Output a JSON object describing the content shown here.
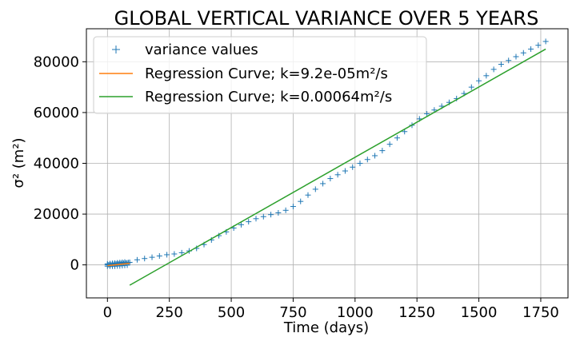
{
  "chart_data": {
    "type": "scatter",
    "title": "GLOBAL VERTICAL VARIANCE OVER 5 YEARS",
    "xlabel": "Time (days)",
    "ylabel": "σ² (m²)",
    "xlim": [
      -85,
      1860
    ],
    "ylim": [
      -13000,
      93000
    ],
    "xticks": [
      0,
      250,
      500,
      750,
      1000,
      1250,
      1500,
      1750
    ],
    "yticks": [
      0,
      20000,
      40000,
      60000,
      80000
    ],
    "grid": true,
    "legend_position": "top-left",
    "series": [
      {
        "name": "variance values",
        "kind": "scatter",
        "marker": "+",
        "color": "#1f77b4",
        "x": [
          0,
          5,
          10,
          15,
          20,
          25,
          30,
          35,
          40,
          45,
          50,
          55,
          60,
          65,
          70,
          75,
          80,
          85,
          90,
          120,
          150,
          180,
          210,
          240,
          270,
          300,
          330,
          360,
          390,
          420,
          450,
          480,
          510,
          540,
          570,
          600,
          630,
          660,
          690,
          720,
          750,
          780,
          810,
          840,
          870,
          900,
          930,
          960,
          990,
          1020,
          1050,
          1080,
          1110,
          1140,
          1170,
          1200,
          1230,
          1260,
          1290,
          1320,
          1350,
          1380,
          1410,
          1440,
          1470,
          1500,
          1530,
          1560,
          1590,
          1620,
          1650,
          1680,
          1710,
          1740,
          1770
        ],
        "y": [
          0,
          50,
          100,
          150,
          200,
          250,
          300,
          350,
          400,
          450,
          500,
          550,
          600,
          650,
          700,
          750,
          800,
          900,
          1000,
          2000,
          2500,
          3000,
          3500,
          4000,
          4300,
          4800,
          5500,
          6500,
          8000,
          9800,
          11500,
          13000,
          14500,
          15800,
          17000,
          18200,
          19000,
          19800,
          20500,
          21500,
          23000,
          25000,
          27500,
          29800,
          32000,
          34000,
          35500,
          37000,
          38500,
          40000,
          41500,
          43000,
          45000,
          47500,
          50000,
          52500,
          55000,
          57500,
          59500,
          61000,
          62500,
          64000,
          65500,
          67500,
          70000,
          72500,
          74500,
          77000,
          79000,
          80500,
          82000,
          83500,
          85000,
          86500,
          88000
        ]
      },
      {
        "name": "Regression Curve; k=9.2e-05m²/s",
        "kind": "line",
        "color": "#ff7f0e",
        "x": [
          0,
          90
        ],
        "y": [
          -300,
          600
        ]
      },
      {
        "name": "Regression Curve; k=0.00064m²/s",
        "kind": "line",
        "color": "#2ca02c",
        "x": [
          90,
          1770
        ],
        "y": [
          -8000,
          85000
        ]
      }
    ],
    "extra_markers": {
      "description_color": "#1f77b4",
      "x": [
        0,
        10,
        20,
        30,
        40,
        50,
        60,
        70,
        80,
        0,
        10,
        20,
        30,
        40,
        50,
        60,
        70
      ],
      "y": [
        -500,
        -500,
        -500,
        -500,
        -400,
        -400,
        -300,
        -200,
        -100,
        400,
        500,
        600,
        700,
        800,
        900,
        1000,
        1100
      ]
    }
  }
}
